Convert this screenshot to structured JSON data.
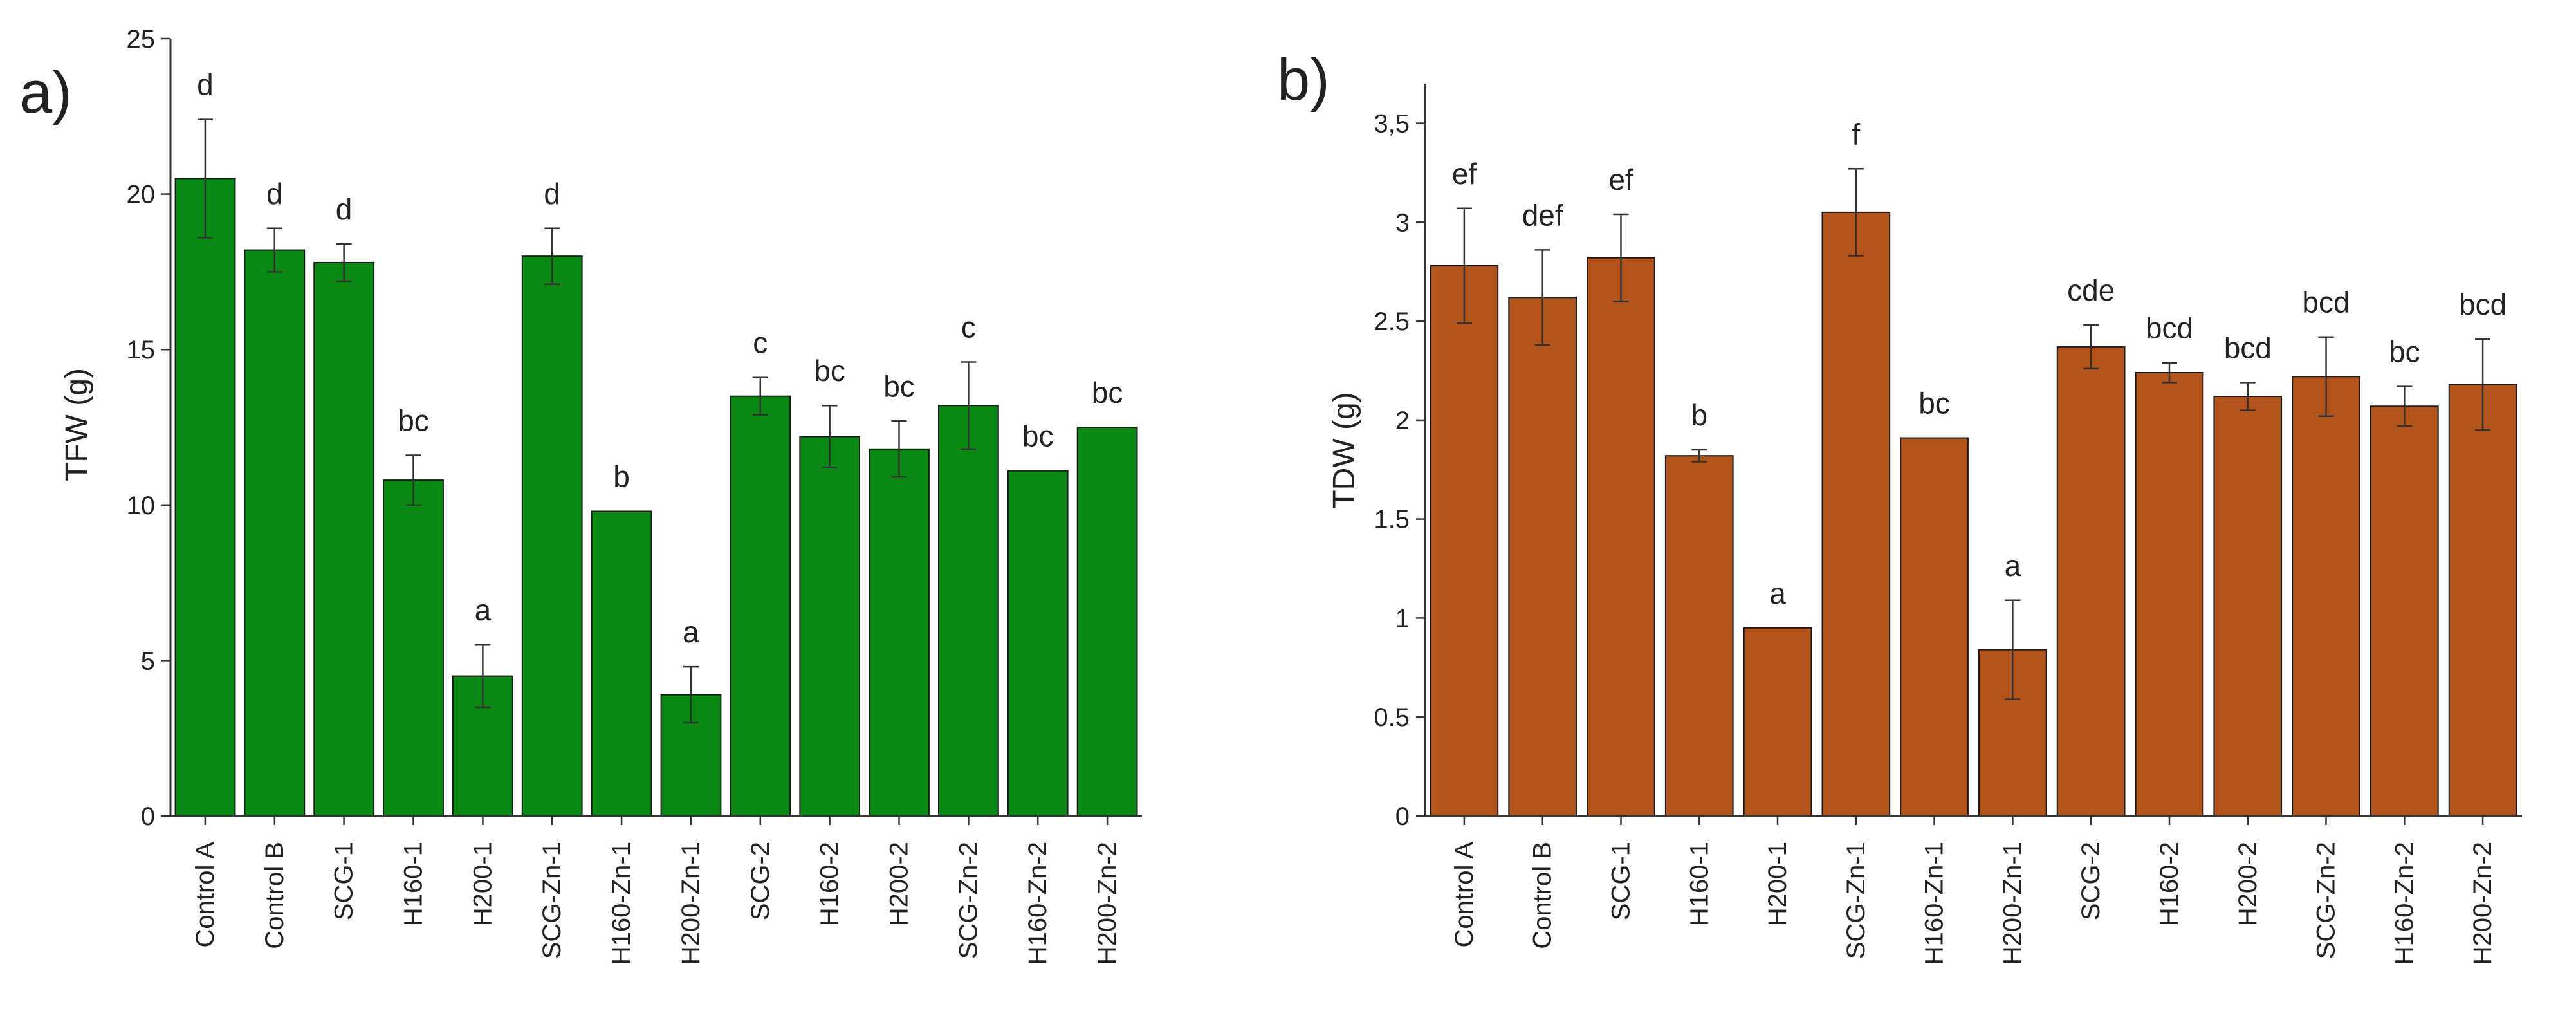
{
  "chart_data": [
    {
      "type": "bar",
      "panel_label": "a)",
      "title": "",
      "xlabel": "",
      "ylabel": "TFW (g)",
      "ylim": [
        0,
        25
      ],
      "yticks": [
        0,
        5,
        10,
        15,
        20,
        25
      ],
      "ytick_labels": [
        "0",
        "5",
        "10",
        "15",
        "20",
        "25"
      ],
      "categories": [
        "Control A",
        "Control B",
        "SCG-1",
        "H160-1",
        "H200-1",
        "SCG-Zn-1",
        "H160-Zn-1",
        "H200-Zn-1",
        "SCG-2",
        "H160-2",
        "H200-2",
        "SCG-Zn-2",
        "H160-Zn-2",
        "H200-Zn-2"
      ],
      "values": [
        20.5,
        18.2,
        17.8,
        10.8,
        4.5,
        18.0,
        9.8,
        3.9,
        13.5,
        12.2,
        11.8,
        13.2,
        11.1,
        12.5
      ],
      "errors": [
        1.9,
        0.7,
        0.6,
        0.8,
        1.0,
        0.9,
        0,
        0.9,
        0.6,
        1.0,
        0.9,
        1.4,
        0,
        0
      ],
      "letters": [
        "d",
        "d",
        "d",
        "bc",
        "a",
        "d",
        "b",
        "a",
        "c",
        "bc",
        "bc",
        "c",
        "bc",
        "bc"
      ],
      "bar_color": "#0a8a14",
      "grid": false
    },
    {
      "type": "bar",
      "panel_label": "b)",
      "title": "",
      "xlabel": "",
      "ylabel": "TDW (g)",
      "ylim": [
        0,
        3.7
      ],
      "yticks": [
        0,
        0.5,
        1,
        1.5,
        2,
        2.5,
        3,
        3.5
      ],
      "ytick_labels": [
        "0",
        "0.5",
        "1",
        "1.5",
        "2",
        "2.5",
        "3",
        "3,5"
      ],
      "categories": [
        "Control A",
        "Control B",
        "SCG-1",
        "H160-1",
        "H200-1",
        "SCG-Zn-1",
        "H160-Zn-1",
        "H200-Zn-1",
        "SCG-2",
        "H160-2",
        "H200-2",
        "SCG-Zn-2",
        "H160-Zn-2",
        "H200-Zn-2"
      ],
      "values": [
        2.78,
        2.62,
        2.82,
        1.82,
        0.95,
        3.05,
        1.91,
        0.84,
        2.37,
        2.24,
        2.12,
        2.22,
        2.07,
        2.18
      ],
      "errors": [
        0.29,
        0.24,
        0.22,
        0.03,
        0,
        0.22,
        0,
        0.25,
        0.11,
        0.05,
        0.07,
        0.2,
        0.1,
        0.23
      ],
      "letters": [
        "ef",
        "def",
        "ef",
        "b",
        "a",
        "f",
        "bc",
        "a",
        "cde",
        "bcd",
        "bcd",
        "bcd",
        "bc",
        "bcd"
      ],
      "bar_color": "#b3531c",
      "grid": false
    }
  ]
}
